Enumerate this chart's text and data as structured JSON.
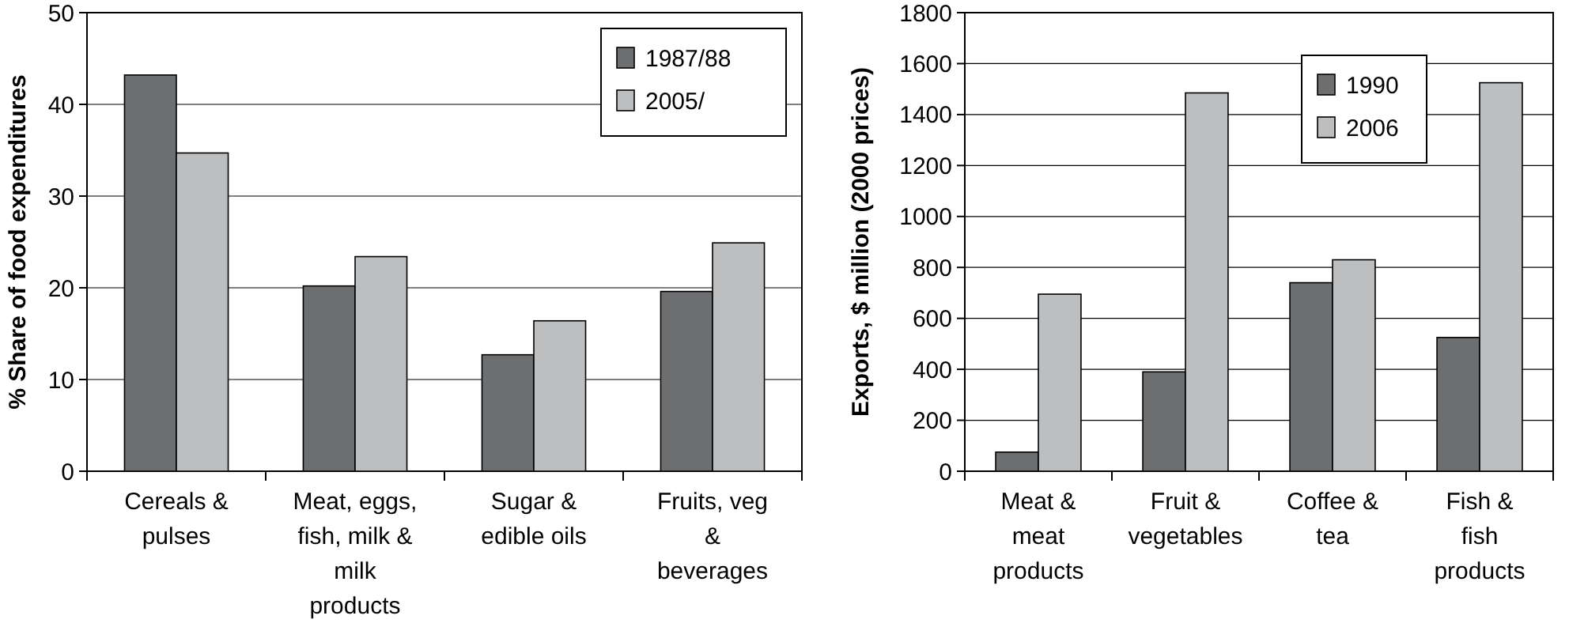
{
  "chart_data": [
    {
      "type": "bar",
      "ylabel": "% Share of food expenditures",
      "categories": [
        "Cereals &\npulses",
        "Meat, eggs,\nfish, milk &\nmilk\nproducts",
        "Sugar &\nedible oils",
        "Fruits, veg\n&\nbeverages"
      ],
      "series": [
        {
          "name": "1987/88",
          "color": "#6d6e70",
          "values": [
            43.2,
            20.2,
            12.7,
            19.6
          ]
        },
        {
          "name": "2005/",
          "color": "#bdbec0",
          "values": [
            34.7,
            23.4,
            16.4,
            24.9
          ]
        }
      ],
      "ylim": [
        0,
        50
      ],
      "yticks": [
        0,
        10,
        20,
        30,
        40,
        50
      ],
      "grid": "y",
      "legend": "top right"
    },
    {
      "type": "bar",
      "ylabel": "Exports, $ million (2000 prices)",
      "categories": [
        "Meat &\nmeat\nproducts",
        "Fruit &\nvegetables",
        "Coffee &\ntea",
        "Fish &\nfish\nproducts"
      ],
      "series": [
        {
          "name": "1990",
          "color": "#6d6e70",
          "values": [
            75,
            390,
            740,
            525
          ]
        },
        {
          "name": "2006",
          "color": "#bdbec0",
          "values": [
            695,
            1485,
            830,
            1525
          ]
        }
      ],
      "ylim": [
        0,
        1800
      ],
      "yticks": [
        0,
        200,
        400,
        600,
        800,
        1000,
        1200,
        1400,
        1600,
        1800
      ],
      "grid": "y",
      "legend": "top right"
    }
  ]
}
